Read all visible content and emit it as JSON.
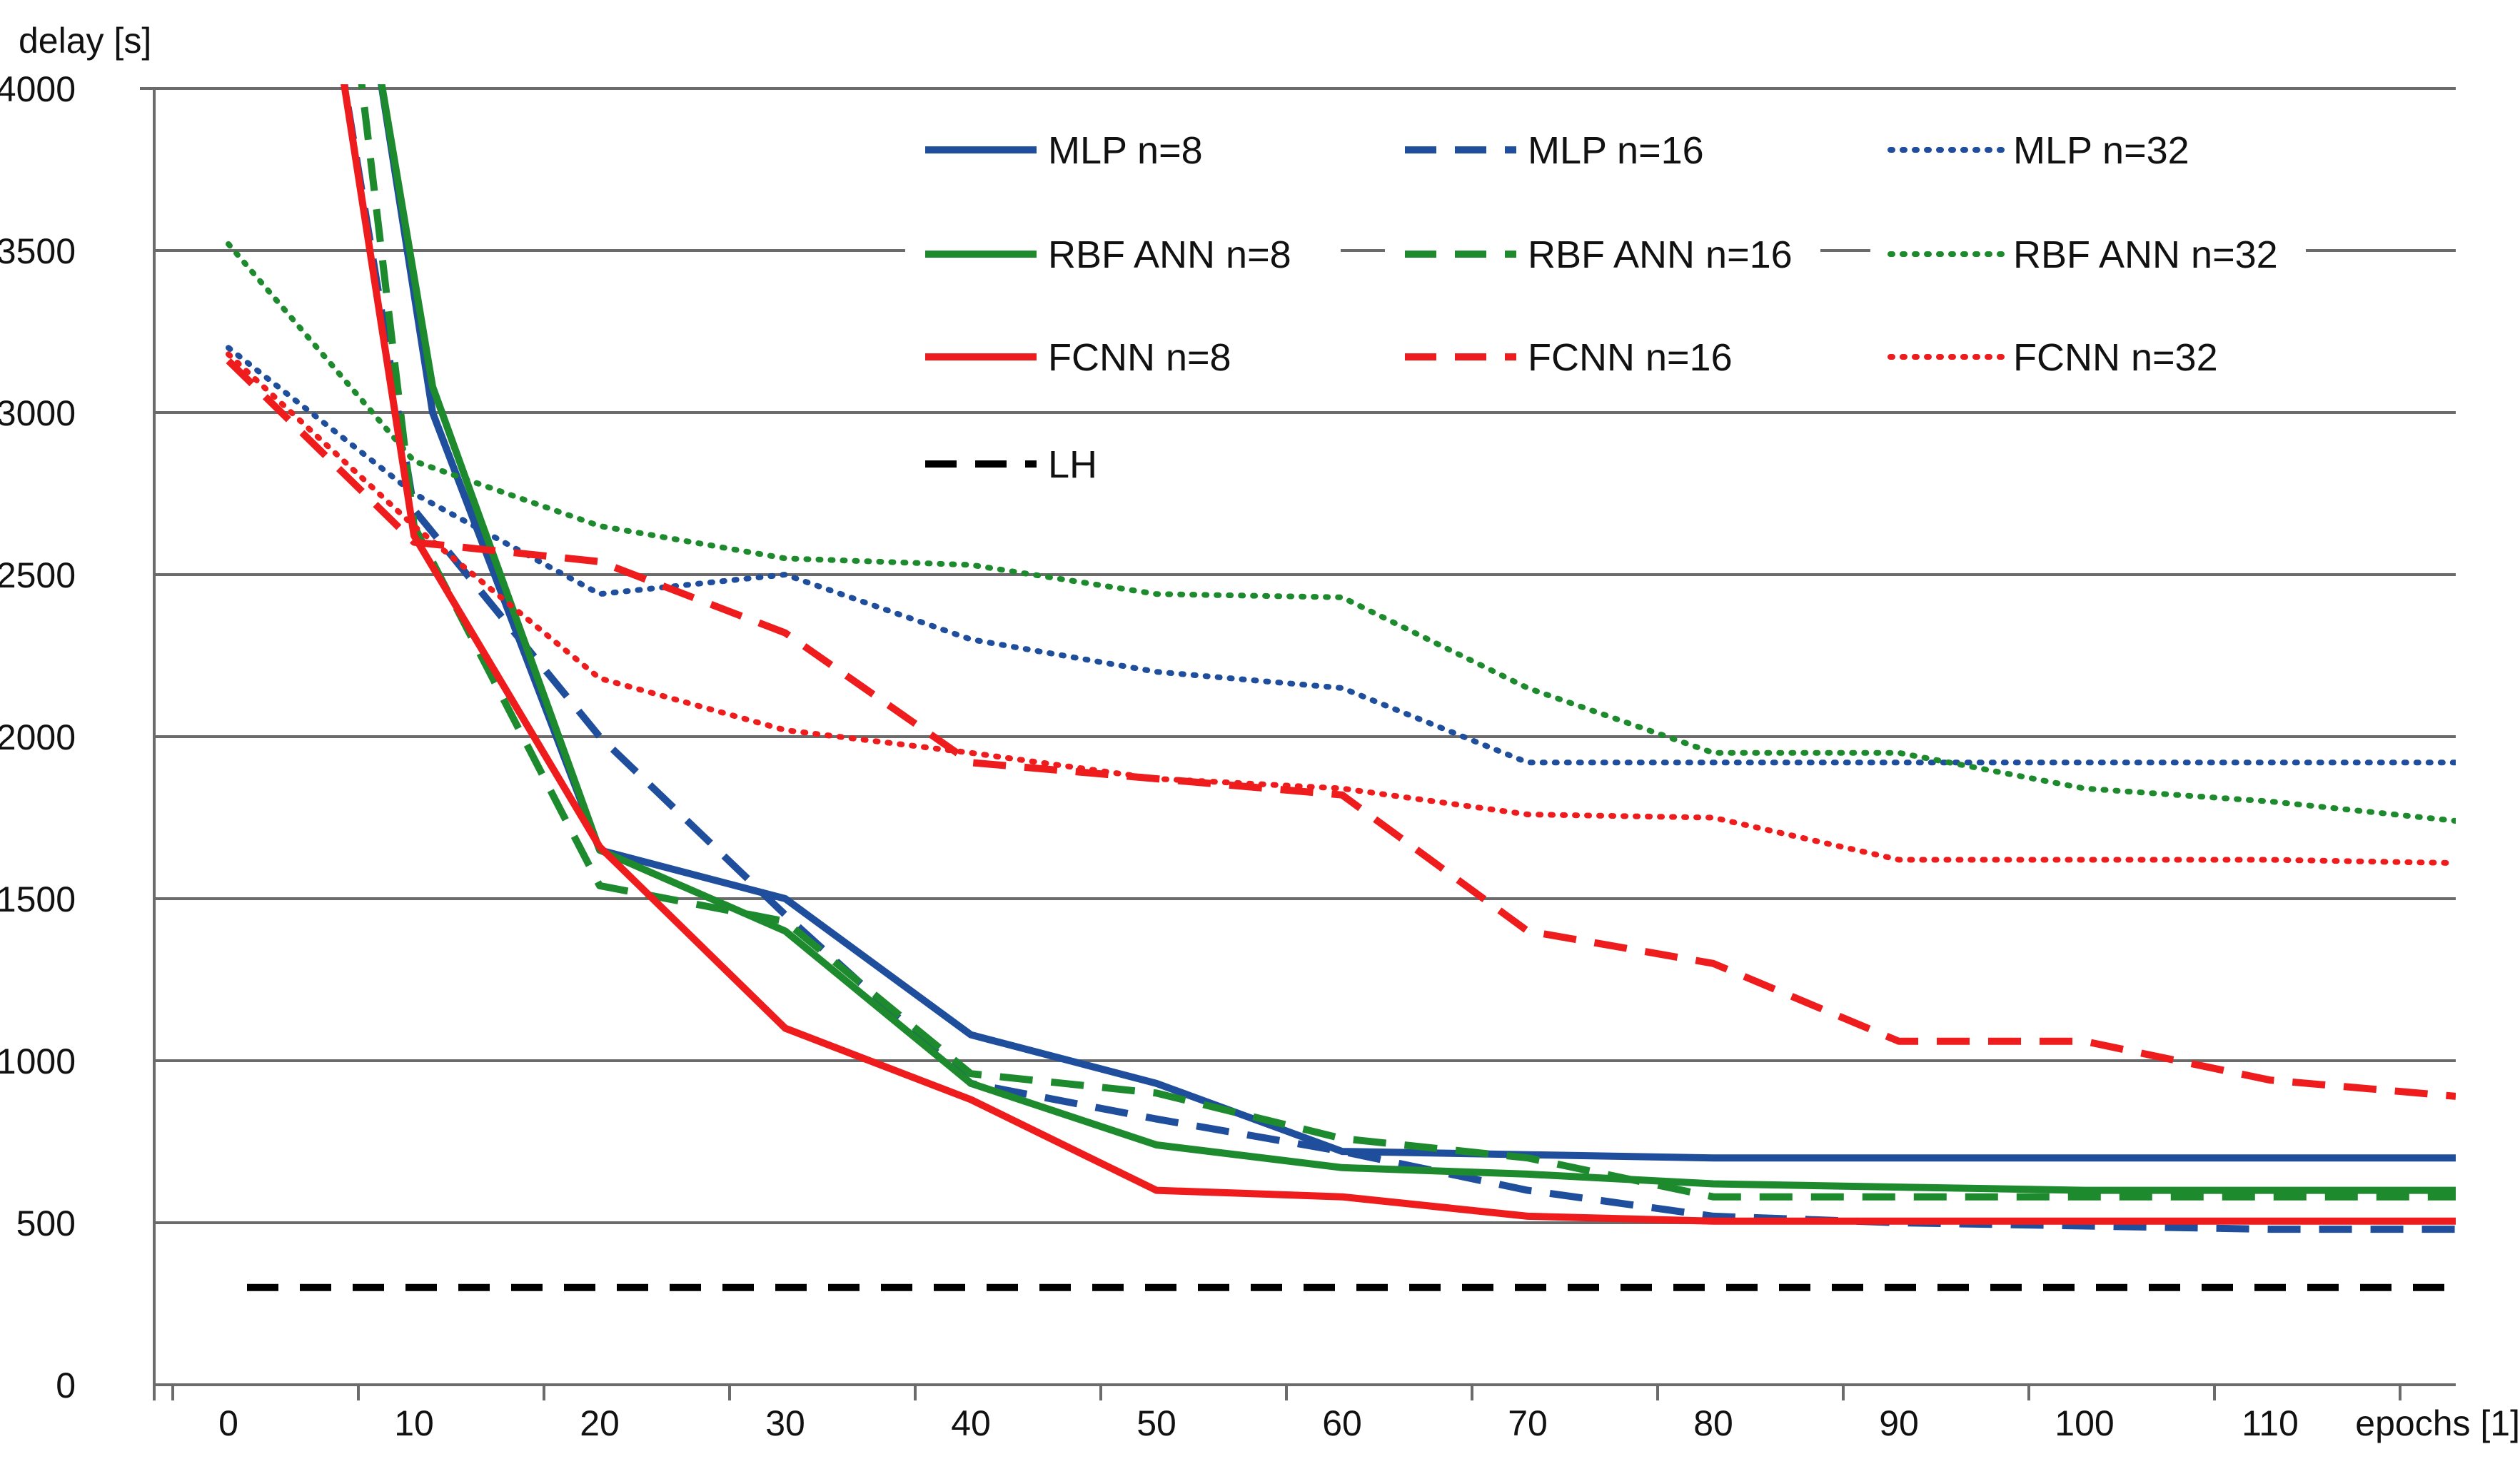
{
  "chart_data": {
    "type": "line",
    "title": "",
    "xlabel": "epochs [1]",
    "ylabel": "delay [s]",
    "xlim": [
      -4,
      120
    ],
    "ylim": [
      0,
      4000
    ],
    "x_ticks": [
      0,
      10,
      20,
      30,
      40,
      50,
      60,
      70,
      80,
      90,
      100,
      110
    ],
    "y_ticks": [
      0,
      500,
      1000,
      1500,
      2000,
      2500,
      3000,
      3500,
      4000
    ],
    "grid": "horizontal",
    "legend_position": "top-right",
    "series": [
      {
        "name": "MLP n=8",
        "color": "#1f4e9c",
        "style": "solid",
        "x": [
          8,
          11,
          20,
          30,
          40,
          50,
          60,
          70,
          80,
          90,
          100,
          110,
          120
        ],
        "y": [
          4100,
          3000,
          1650,
          1500,
          1080,
          930,
          720,
          710,
          700,
          700,
          700,
          700,
          700
        ]
      },
      {
        "name": "MLP n=16",
        "color": "#1f4e9c",
        "style": "dashed",
        "x": [
          6,
          10,
          20,
          30,
          40,
          50,
          60,
          70,
          80,
          90,
          100,
          110,
          120
        ],
        "y": [
          4100,
          2700,
          2000,
          1450,
          930,
          820,
          720,
          600,
          520,
          500,
          490,
          480,
          480
        ]
      },
      {
        "name": "MLP n=32",
        "color": "#1f4e9c",
        "style": "dotted",
        "x": [
          0,
          10,
          20,
          30,
          40,
          50,
          60,
          70,
          80,
          90,
          100,
          110,
          120
        ],
        "y": [
          3200,
          2750,
          2440,
          2500,
          2300,
          2200,
          2150,
          1920,
          1920,
          1920,
          1920,
          1920,
          1920
        ]
      },
      {
        "name": "RBF ANN n=8",
        "color": "#1e8a2e",
        "style": "solid",
        "x": [
          8,
          11,
          20,
          30,
          40,
          50,
          60,
          70,
          80,
          90,
          100,
          110,
          120
        ],
        "y": [
          4100,
          3080,
          1650,
          1400,
          930,
          740,
          670,
          650,
          620,
          610,
          600,
          600,
          600
        ]
      },
      {
        "name": "RBF ANN n=16",
        "color": "#1e8a2e",
        "style": "dashed",
        "x": [
          7,
          10,
          20,
          30,
          40,
          50,
          60,
          70,
          80,
          90,
          100,
          110,
          120
        ],
        "y": [
          4100,
          2650,
          1540,
          1430,
          960,
          900,
          760,
          700,
          580,
          580,
          580,
          580,
          580
        ]
      },
      {
        "name": "RBF ANN n=32",
        "color": "#1e8a2e",
        "style": "dotted",
        "x": [
          0,
          10,
          20,
          30,
          40,
          50,
          60,
          70,
          80,
          90,
          100,
          110,
          120
        ],
        "y": [
          3520,
          2850,
          2650,
          2550,
          2530,
          2440,
          2430,
          2150,
          1950,
          1950,
          1840,
          1800,
          1740
        ]
      },
      {
        "name": "FCNN n=8",
        "color": "#ee1c1c",
        "style": "solid",
        "x": [
          6,
          10,
          20,
          30,
          40,
          50,
          60,
          70,
          80,
          90,
          100,
          110,
          120
        ],
        "y": [
          4100,
          2620,
          1660,
          1100,
          880,
          600,
          580,
          520,
          505,
          505,
          505,
          505,
          505
        ]
      },
      {
        "name": "FCNN n=16",
        "color": "#ee1c1c",
        "style": "dashed",
        "x": [
          0,
          10,
          20,
          30,
          40,
          50,
          60,
          70,
          80,
          90,
          100,
          110,
          120
        ],
        "y": [
          3160,
          2600,
          2540,
          2320,
          1920,
          1870,
          1820,
          1400,
          1300,
          1060,
          1060,
          940,
          890
        ]
      },
      {
        "name": "FCNN n=32",
        "color": "#ee1c1c",
        "style": "dotted",
        "x": [
          0,
          10,
          20,
          30,
          40,
          50,
          60,
          70,
          80,
          90,
          100,
          110,
          120
        ],
        "y": [
          3180,
          2650,
          2180,
          2020,
          1950,
          1870,
          1840,
          1760,
          1750,
          1620,
          1620,
          1620,
          1610
        ]
      },
      {
        "name": "LH",
        "color": "#000000",
        "style": "dashed",
        "x": [
          1,
          120
        ],
        "y": [
          300,
          300
        ]
      }
    ]
  }
}
